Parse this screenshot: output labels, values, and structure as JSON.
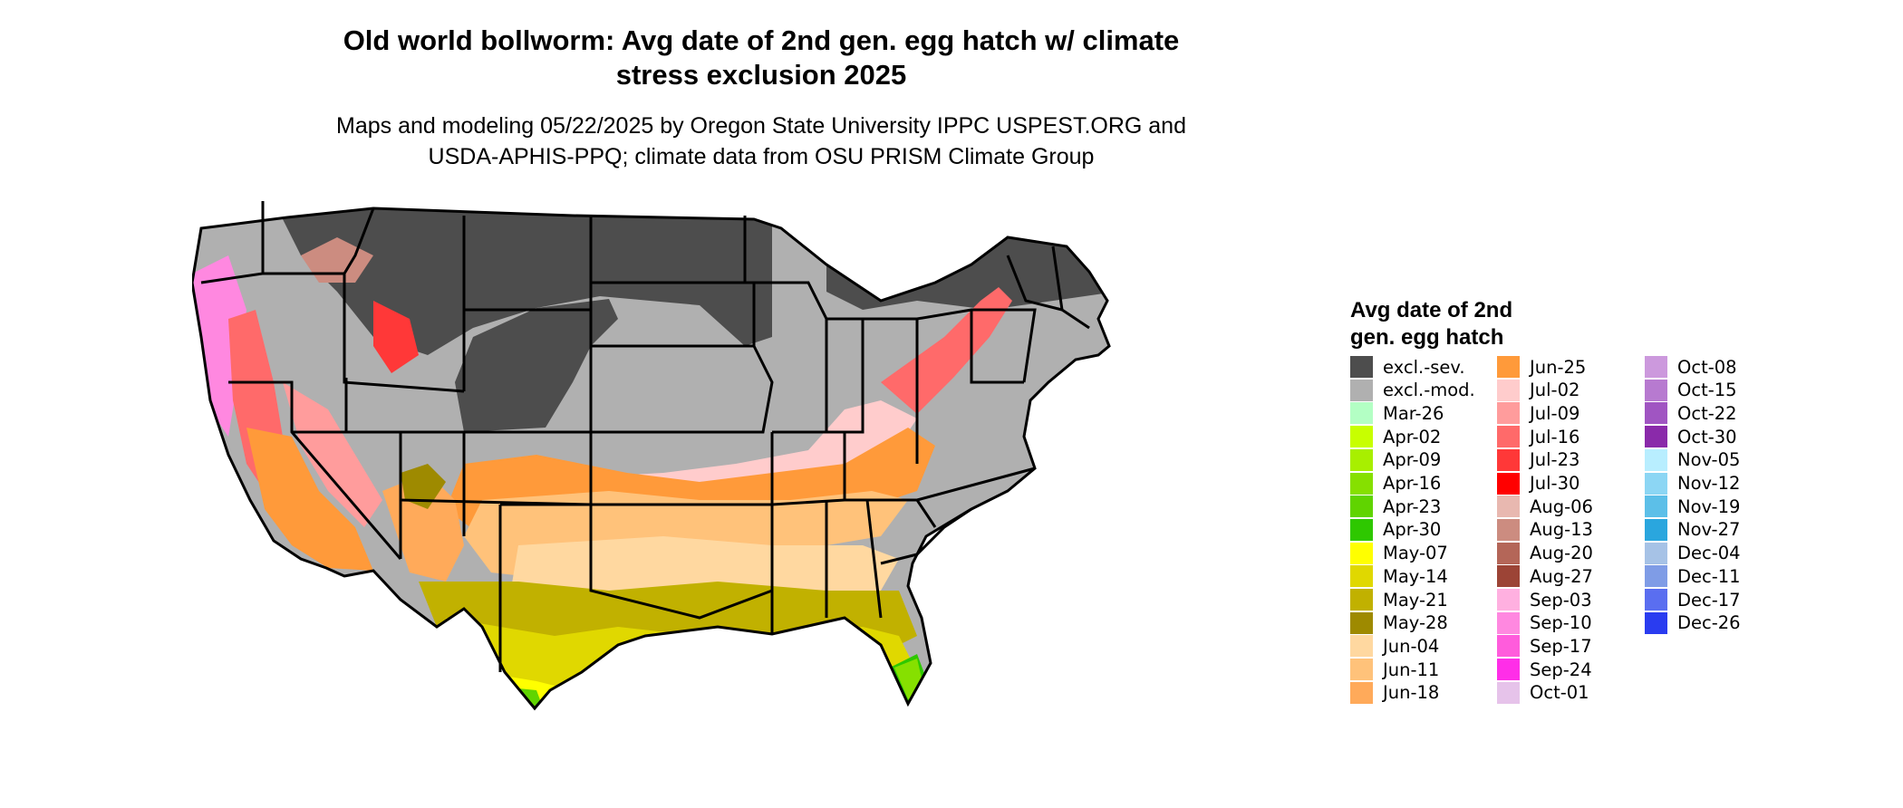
{
  "title": {
    "line1": "Old world bollworm: Avg date of 2nd gen. egg hatch w/ climate",
    "line2": "stress exclusion 2025"
  },
  "subtitle": {
    "line1": "Maps and modeling 05/22/2025 by Oregon State University IPPC USPEST.ORG and",
    "line2": "USDA-APHIS-PPQ; climate data from OSU PRISM Climate Group"
  },
  "map": {
    "description": "Contiguous United States with state boundaries, shaded by average date of 2nd generation egg hatch",
    "excluded_severe_color": "#4d4d4d",
    "excluded_moderate_color": "#b0b0b0"
  },
  "legend": {
    "title_line1": "Avg date of 2nd",
    "title_line2": "gen. egg hatch",
    "columns": [
      [
        {
          "label": "excl.-sev.",
          "color": "#4d4d4d"
        },
        {
          "label": "excl.-mod.",
          "color": "#b0b0b0"
        },
        {
          "label": "Mar-26",
          "color": "#b3ffc4"
        },
        {
          "label": "Apr-02",
          "color": "#c8ff00"
        },
        {
          "label": "Apr-09",
          "color": "#a8ef00"
        },
        {
          "label": "Apr-16",
          "color": "#86e000"
        },
        {
          "label": "Apr-23",
          "color": "#60d400"
        },
        {
          "label": "Apr-30",
          "color": "#2ec800"
        },
        {
          "label": "May-07",
          "color": "#ffff00"
        },
        {
          "label": "May-14",
          "color": "#e0d800"
        },
        {
          "label": "May-21",
          "color": "#c1b100"
        },
        {
          "label": "May-28",
          "color": "#9e8a00"
        },
        {
          "label": "Jun-04",
          "color": "#ffd8a0"
        },
        {
          "label": "Jun-11",
          "color": "#ffc27a"
        },
        {
          "label": "Jun-18",
          "color": "#ffaa5a"
        }
      ],
      [
        {
          "label": "Jun-25",
          "color": "#ff9a3a"
        },
        {
          "label": "Jul-02",
          "color": "#ffcccc"
        },
        {
          "label": "Jul-09",
          "color": "#ff9c9c"
        },
        {
          "label": "Jul-16",
          "color": "#ff6a6a"
        },
        {
          "label": "Jul-23",
          "color": "#ff3838"
        },
        {
          "label": "Jul-30",
          "color": "#ff0000"
        },
        {
          "label": "Aug-06",
          "color": "#e8b8b0"
        },
        {
          "label": "Aug-13",
          "color": "#cc8c80"
        },
        {
          "label": "Aug-20",
          "color": "#b46658"
        },
        {
          "label": "Aug-27",
          "color": "#9c4436"
        },
        {
          "label": "Sep-03",
          "color": "#ffb0e0"
        },
        {
          "label": "Sep-10",
          "color": "#ff88e0"
        },
        {
          "label": "Sep-17",
          "color": "#ff5cdc"
        },
        {
          "label": "Sep-24",
          "color": "#ff2ee8"
        },
        {
          "label": "Oct-01",
          "color": "#e6c3ea"
        }
      ],
      [
        {
          "label": "Oct-08",
          "color": "#cc99dd"
        },
        {
          "label": "Oct-15",
          "color": "#b77ad0"
        },
        {
          "label": "Oct-22",
          "color": "#a055c2"
        },
        {
          "label": "Oct-30",
          "color": "#8a2aaa"
        },
        {
          "label": "Nov-05",
          "color": "#b8eeff"
        },
        {
          "label": "Nov-12",
          "color": "#8cd6f4"
        },
        {
          "label": "Nov-19",
          "color": "#5cbfe8"
        },
        {
          "label": "Nov-27",
          "color": "#2aa6de"
        },
        {
          "label": "Dec-04",
          "color": "#a6c2e6"
        },
        {
          "label": "Dec-11",
          "color": "#7f9ce6"
        },
        {
          "label": "Dec-17",
          "color": "#5a6ef0"
        },
        {
          "label": "Dec-26",
          "color": "#2a3cf0"
        }
      ]
    ]
  }
}
